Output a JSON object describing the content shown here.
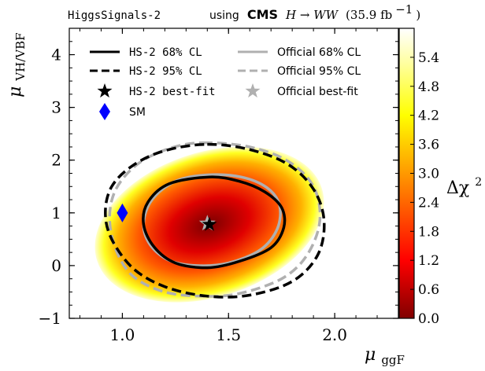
{
  "chart_data": {
    "type": "heatmap",
    "title_left": "HiggsSignals-2",
    "title_right": {
      "prefix": "using",
      "experiment": "CMS",
      "process": "H → WW",
      "luminosity": "(35.9 fb",
      "luminosity_exp": "−1",
      "luminosity_close": ")"
    },
    "xlabel": "μ",
    "xlabel_sub": "ggF",
    "ylabel": "μ",
    "ylabel_sub": "VH/VBF",
    "xlim": [
      0.75,
      2.3
    ],
    "ylim": [
      -1,
      4.5
    ],
    "xticks": [
      1.0,
      1.5,
      2.0
    ],
    "xtick_labels": [
      "1.0",
      "1.5",
      "2.0"
    ],
    "yticks": [
      -1,
      0,
      1,
      2,
      3,
      4
    ],
    "ytick_labels": [
      "−1",
      "0",
      "1",
      "2",
      "3",
      "4"
    ],
    "colorbar": {
      "label": "Δχ",
      "label_exp": "2",
      "range": [
        0.0,
        6.0
      ],
      "ticks": [
        0.0,
        0.6,
        1.2,
        1.8,
        2.4,
        3.0,
        3.6,
        4.2,
        4.8,
        5.4
      ],
      "tick_labels": [
        "0.0",
        "0.6",
        "1.2",
        "1.8",
        "2.4",
        "3.0",
        "3.6",
        "4.2",
        "4.8",
        "5.4"
      ],
      "colormap": [
        "#800000",
        "#ff0000",
        "#ff8000",
        "#ffff00",
        "#ffffc0",
        "#ffffff"
      ]
    },
    "best_fit": {
      "x": 1.41,
      "y": 0.78
    },
    "official_best_fit": {
      "x": 1.4,
      "y": 0.8
    },
    "sm": {
      "x": 1.0,
      "y": 1.0
    },
    "contours": [
      {
        "name": "HS-2 68% CL",
        "points": [
          [
            1.41,
            1.68
          ],
          [
            1.55,
            1.6
          ],
          [
            1.67,
            1.4
          ],
          [
            1.75,
            1.1
          ],
          [
            1.76,
            0.72
          ],
          [
            1.7,
            0.34
          ],
          [
            1.55,
            0.08
          ],
          [
            1.4,
            -0.04
          ],
          [
            1.25,
            0.05
          ],
          [
            1.15,
            0.35
          ],
          [
            1.1,
            0.78
          ],
          [
            1.12,
            1.2
          ],
          [
            1.22,
            1.55
          ]
        ],
        "color": "#000000",
        "dash": "solid"
      },
      {
        "name": "HS-2 95% CL",
        "points": [
          [
            1.4,
            2.3
          ],
          [
            1.6,
            2.2
          ],
          [
            1.78,
            1.92
          ],
          [
            1.9,
            1.45
          ],
          [
            1.95,
            0.85
          ],
          [
            1.92,
            0.2
          ],
          [
            1.8,
            -0.3
          ],
          [
            1.6,
            -0.56
          ],
          [
            1.4,
            -0.58
          ],
          [
            1.2,
            -0.4
          ],
          [
            1.05,
            -0.05
          ],
          [
            0.95,
            0.5
          ],
          [
            0.92,
            1.0
          ],
          [
            0.95,
            1.5
          ],
          [
            1.05,
            1.9
          ],
          [
            1.2,
            2.18
          ]
        ],
        "color": "#000000",
        "dash": "dashed"
      },
      {
        "name": "Official 68% CL",
        "points": [
          [
            1.4,
            1.72
          ],
          [
            1.56,
            1.68
          ],
          [
            1.68,
            1.48
          ],
          [
            1.74,
            1.15
          ],
          [
            1.73,
            0.7
          ],
          [
            1.65,
            0.3
          ],
          [
            1.5,
            0.05
          ],
          [
            1.35,
            0.0
          ],
          [
            1.22,
            0.1
          ],
          [
            1.13,
            0.4
          ],
          [
            1.1,
            0.8
          ],
          [
            1.14,
            1.25
          ],
          [
            1.25,
            1.6
          ]
        ],
        "color": "#b0b0b0",
        "dash": "solid"
      },
      {
        "name": "Official 95% CL",
        "points": [
          [
            1.38,
            2.33
          ],
          [
            1.6,
            2.25
          ],
          [
            1.78,
            1.98
          ],
          [
            1.9,
            1.5
          ],
          [
            1.93,
            0.85
          ],
          [
            1.87,
            0.2
          ],
          [
            1.75,
            -0.25
          ],
          [
            1.55,
            -0.53
          ],
          [
            1.38,
            -0.58
          ],
          [
            1.2,
            -0.5
          ],
          [
            1.05,
            -0.2
          ],
          [
            0.97,
            0.3
          ],
          [
            0.94,
            0.9
          ],
          [
            0.97,
            1.45
          ],
          [
            1.07,
            1.92
          ],
          [
            1.22,
            2.22
          ]
        ],
        "color": "#b0b0b0",
        "dash": "dashed"
      }
    ],
    "legend": [
      {
        "label": "HS-2 68% CL",
        "style": "solid",
        "color": "#000000",
        "font": "mono"
      },
      {
        "label": "HS-2 95% CL",
        "style": "dashed",
        "color": "#000000",
        "font": "mono"
      },
      {
        "label": "HS-2 best-fit",
        "style": "star",
        "color": "#000000",
        "font": "mono"
      },
      {
        "label": "SM",
        "style": "diamond",
        "color": "#0000ff",
        "font": "sans"
      },
      {
        "label": "Official 68% CL",
        "style": "solid",
        "color": "#b0b0b0",
        "font": "sans"
      },
      {
        "label": "Official 95% CL",
        "style": "dashed",
        "color": "#b0b0b0",
        "font": "sans"
      },
      {
        "label": "Official best-fit",
        "style": "star",
        "color": "#b0b0b0",
        "font": "sans"
      }
    ]
  }
}
